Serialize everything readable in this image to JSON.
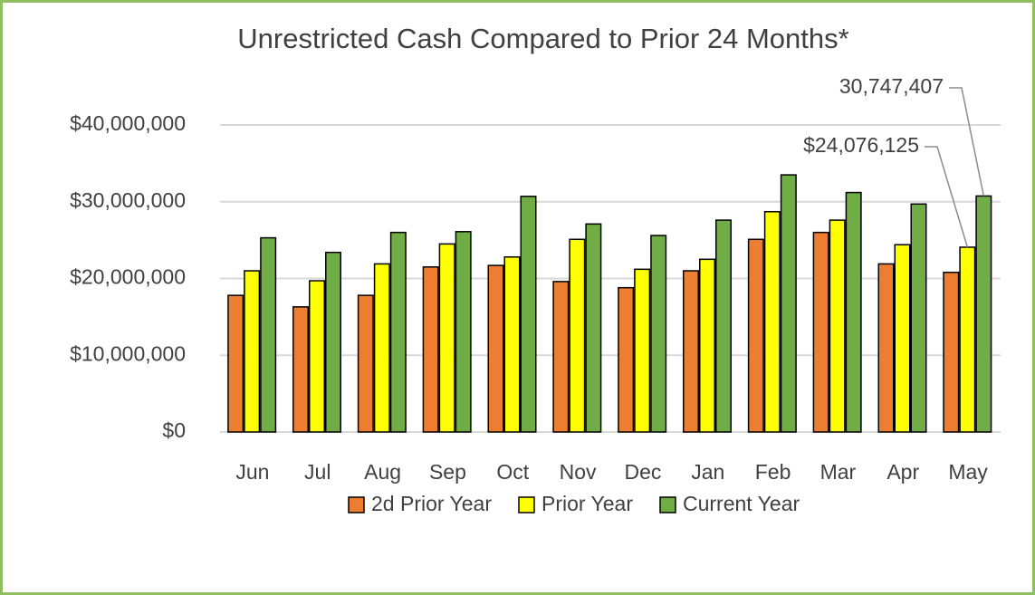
{
  "chart_data": {
    "type": "bar",
    "title": "Unrestricted Cash Compared to Prior 24 Months*",
    "categories": [
      "Jun",
      "Jul",
      "Aug",
      "Sep",
      "Oct",
      "Nov",
      "Dec",
      "Jan",
      "Feb",
      "Mar",
      "Apr",
      "May"
    ],
    "series": [
      {
        "name": "2d Prior Year",
        "color": "#ed7d31",
        "values": [
          17800000,
          16300000,
          17800000,
          21500000,
          21700000,
          19600000,
          18800000,
          21000000,
          25100000,
          26000000,
          21900000,
          20800000
        ]
      },
      {
        "name": "Prior Year",
        "color": "#ffff00",
        "values": [
          21000000,
          19700000,
          21900000,
          24500000,
          22800000,
          25100000,
          21200000,
          22500000,
          28700000,
          27600000,
          24400000,
          24076125
        ],
        "value_labels": [
          null,
          null,
          null,
          null,
          null,
          null,
          null,
          null,
          null,
          null,
          null,
          "$24,076,125"
        ]
      },
      {
        "name": "Current Year",
        "color": "#70ad47",
        "values": [
          25300000,
          23400000,
          26000000,
          26100000,
          30700000,
          27100000,
          25600000,
          27600000,
          33500000,
          31200000,
          29700000,
          30747407
        ],
        "value_labels": [
          null,
          null,
          null,
          null,
          null,
          null,
          null,
          null,
          null,
          null,
          null,
          "30,747,407"
        ]
      }
    ],
    "ylim": [
      0,
      40000000
    ],
    "yticks": [
      {
        "value": 0,
        "label": "$0"
      },
      {
        "value": 10000000,
        "label": "$10,000,000"
      },
      {
        "value": 20000000,
        "label": "$20,000,000"
      },
      {
        "value": 30000000,
        "label": "$30,000,000"
      },
      {
        "value": 40000000,
        "label": "$40,000,000"
      }
    ],
    "grid": true,
    "legend": "bottom"
  }
}
